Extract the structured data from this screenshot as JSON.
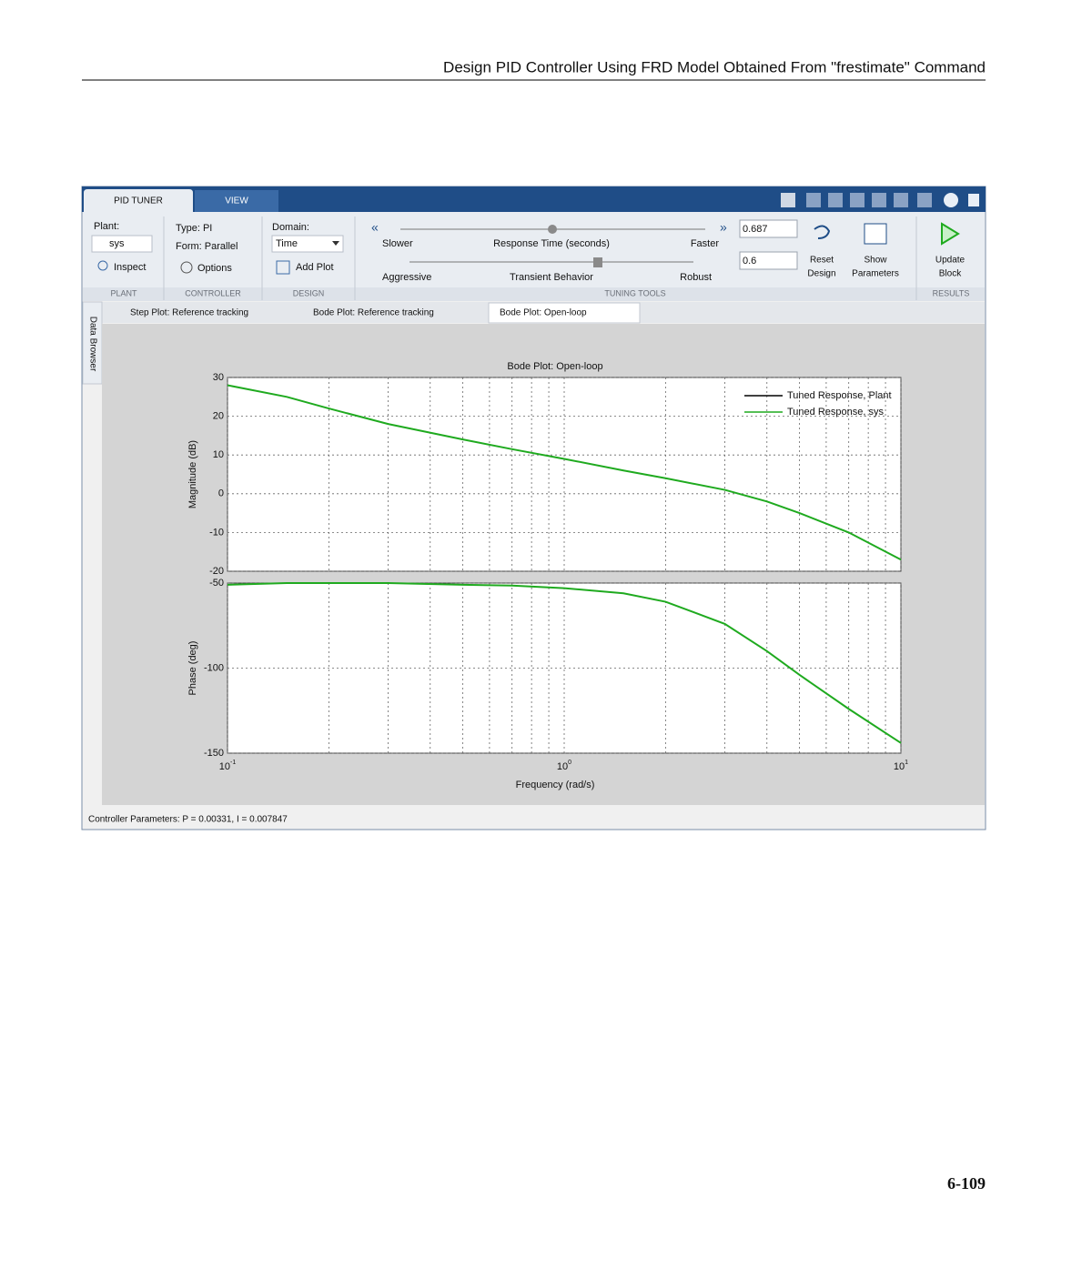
{
  "header": {
    "title": "Design PID Controller Using FRD Model Obtained From \"frestimate\" Command"
  },
  "page_number": "6-109",
  "app": {
    "tabs": [
      "PID TUNER",
      "VIEW"
    ],
    "plant": {
      "label": "Plant:",
      "value": "sys",
      "inspect": "Inspect",
      "section": "PLANT"
    },
    "controller": {
      "type": "Type: PI",
      "form": "Form: Parallel",
      "options": "Options",
      "section": "CONTROLLER"
    },
    "design": {
      "domain_label": "Domain:",
      "domain": "Time",
      "add_plot": "Add Plot",
      "section": "DESIGN"
    },
    "tuning": {
      "slower": "Slower",
      "response_time": "Response Time (seconds)",
      "faster": "Faster",
      "aggressive": "Aggressive",
      "transient": "Transient Behavior",
      "robust": "Robust",
      "response_value": "0.687",
      "transient_value": "0.6",
      "reset": [
        "Reset",
        "Design"
      ],
      "show": [
        "Show",
        "Parameters"
      ],
      "section": "TUNING TOOLS"
    },
    "results": {
      "update": [
        "Update",
        "Block"
      ],
      "section": "RESULTS"
    },
    "data_browser": "Data Browser",
    "doc_tabs": [
      "Step Plot: Reference tracking",
      "Bode Plot: Reference tracking",
      "Bode Plot: Open-loop"
    ],
    "status": "Controller Parameters: P = 0.00331, I = 0.007847"
  },
  "chart_data": [
    {
      "type": "line",
      "title": "Bode Plot: Open-loop",
      "ylabel": "Magnitude (dB)",
      "xscale": "log",
      "grid": true,
      "x": [
        0.1,
        0.15,
        0.2,
        0.3,
        0.5,
        0.7,
        1,
        1.5,
        2,
        3,
        4,
        5,
        7,
        10
      ],
      "xlim": [
        0.1,
        10
      ],
      "xticks": [
        0.1,
        1,
        10
      ],
      "ylim": [
        -20,
        30
      ],
      "yticks": [
        -20,
        -10,
        0,
        10,
        20,
        30
      ],
      "legend": "upper right",
      "series": [
        {
          "name": "Tuned Response, Plant",
          "color": "#000000",
          "values": [
            null,
            null,
            null,
            null,
            null,
            null,
            null,
            null,
            null,
            null,
            null,
            null,
            null,
            null
          ]
        },
        {
          "name": "Tuned Response, sys",
          "color": "#1faa1f",
          "values": [
            28,
            25,
            22,
            18,
            14,
            11.5,
            9,
            6,
            4,
            1,
            -2,
            -5,
            -10,
            -17
          ]
        }
      ]
    },
    {
      "type": "line",
      "ylabel": "Phase (deg)",
      "xlabel": "Frequency (rad/s)",
      "xscale": "log",
      "grid": true,
      "x": [
        0.1,
        0.15,
        0.2,
        0.3,
        0.5,
        0.7,
        1,
        1.5,
        2,
        3,
        4,
        5,
        7,
        10
      ],
      "xlim": [
        0.1,
        10
      ],
      "xticks": [
        {
          "value": 0.1,
          "label": "10^-1"
        },
        {
          "value": 1,
          "label": "10^0"
        },
        {
          "value": 10,
          "label": "10^1"
        }
      ],
      "ylim": [
        -150,
        -50
      ],
      "yticks": [
        -150,
        -100,
        -50
      ],
      "series": [
        {
          "name": "Tuned Response, sys",
          "color": "#1faa1f",
          "values": [
            -51,
            -50,
            -50,
            -50,
            -51,
            -51.5,
            -53,
            -56,
            -61,
            -74,
            -90,
            -104,
            -124,
            -144
          ]
        }
      ]
    }
  ]
}
